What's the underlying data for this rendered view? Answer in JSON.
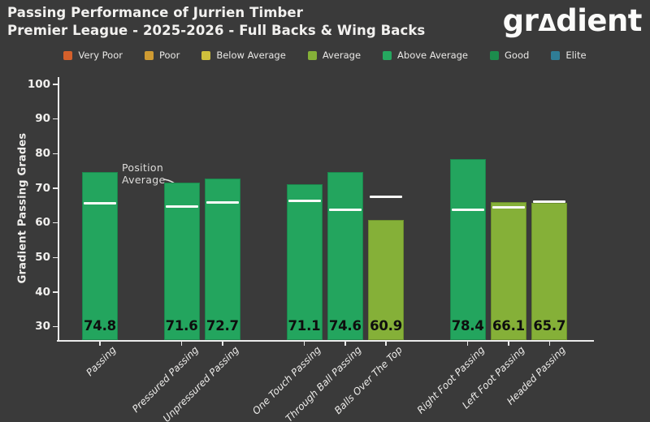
{
  "header": {
    "title_line1": "Passing Performance of Jurrien Timber",
    "title_line2": "Premier League - 2025-2026 - Full Backs & Wing Backs",
    "logo_prefix": "gr",
    "logo_triangle": "Δ",
    "logo_suffix": "dient"
  },
  "legend": {
    "items": [
      {
        "label": "Very Poor",
        "color": "#d4602b"
      },
      {
        "label": "Poor",
        "color": "#cf9b32"
      },
      {
        "label": "Below Average",
        "color": "#cfc03c"
      },
      {
        "label": "Average",
        "color": "#85b038"
      },
      {
        "label": "Above Average",
        "color": "#25a75f"
      },
      {
        "label": "Good",
        "color": "#1c8d4d"
      },
      {
        "label": "Elite",
        "color": "#2f7d96"
      }
    ]
  },
  "chart_data": {
    "type": "bar",
    "title": "Passing Performance of Jurrien Timber",
    "subtitle": "Premier League - 2025-2026 - Full Backs & Wing Backs",
    "ylabel": "Gradient Passing Grades",
    "xlabel": "",
    "yticks": [
      30,
      40,
      50,
      60,
      70,
      80,
      90,
      100
    ],
    "ylim": [
      26.5,
      102.5
    ],
    "grid": false,
    "categories": [
      "Passing",
      "Pressured Passing",
      "Unpressured Passing",
      "One Touch Passing",
      "Through Ball Passing",
      "Balls Over The Top",
      "Right Foot Passing",
      "Left Foot Passing",
      "Headed Passing"
    ],
    "values": [
      74.8,
      71.6,
      72.7,
      71.1,
      74.6,
      60.9,
      78.4,
      66.1,
      65.7
    ],
    "position_averages": [
      65.6,
      64.7,
      65.9,
      66.3,
      63.7,
      67.6,
      63.8,
      64.5,
      66.1
    ],
    "grades": [
      "above_average",
      "above_average",
      "above_average",
      "above_average",
      "above_average",
      "average",
      "above_average",
      "average",
      "average"
    ],
    "group_sizes": [
      1,
      2,
      3,
      3
    ],
    "grade_colors": {
      "above_average": "#23a55e",
      "average": "#85b038"
    },
    "avg_line_color": "#fafaf8",
    "annotation": {
      "line1": "Position",
      "line2": "Average",
      "target_category": "Pressured Passing"
    }
  }
}
